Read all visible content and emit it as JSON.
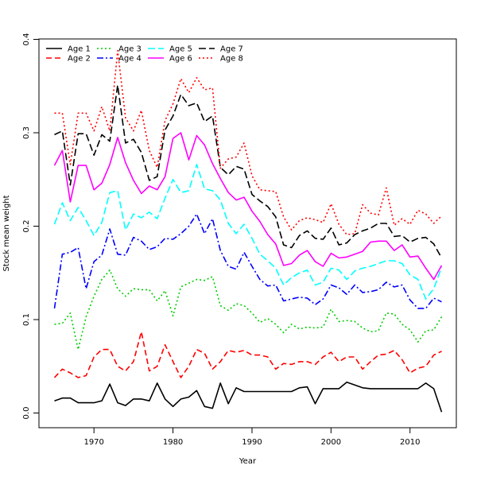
{
  "chart_data": {
    "type": "line",
    "xlabel": "Year",
    "ylabel": "Stock mean weight",
    "xlim": [
      1965,
      2014
    ],
    "ylim": [
      0,
      0.4
    ],
    "xticks": [
      1970,
      1980,
      1990,
      2000,
      2010
    ],
    "yticks": [
      0.0,
      0.1,
      0.2,
      0.3,
      0.4
    ],
    "ytick_labels": [
      "0.0",
      "0.1",
      "0.2",
      "0.3",
      "0.4"
    ],
    "legend_position": "top-left",
    "x": [
      1965,
      1966,
      1967,
      1968,
      1969,
      1970,
      1971,
      1972,
      1973,
      1974,
      1975,
      1976,
      1977,
      1978,
      1979,
      1980,
      1981,
      1982,
      1983,
      1984,
      1985,
      1986,
      1987,
      1988,
      1989,
      1990,
      1991,
      1992,
      1993,
      1994,
      1995,
      1996,
      1997,
      1998,
      1999,
      2000,
      2001,
      2002,
      2003,
      2004,
      2005,
      2006,
      2007,
      2008,
      2009,
      2010,
      2011,
      2012,
      2013,
      2014
    ],
    "series": [
      {
        "name": "Age 1",
        "color": "#000000",
        "dash": "solid",
        "values": [
          0.013,
          0.016,
          0.016,
          0.011,
          0.011,
          0.011,
          0.013,
          0.031,
          0.011,
          0.008,
          0.015,
          0.015,
          0.013,
          0.032,
          0.015,
          0.007,
          0.015,
          0.017,
          0.024,
          0.007,
          0.005,
          0.032,
          0.01,
          0.027,
          0.023,
          0.023,
          0.023,
          0.023,
          0.023,
          0.023,
          0.023,
          0.027,
          0.028,
          0.01,
          0.026,
          0.026,
          0.026,
          0.033,
          0.03,
          0.027,
          0.026,
          0.026,
          0.026,
          0.026,
          0.026,
          0.026,
          0.026,
          0.032,
          0.026,
          0.001
        ]
      },
      {
        "name": "Age 2",
        "color": "#ff0000",
        "dash": "7,4",
        "values": [
          0.038,
          0.047,
          0.043,
          0.038,
          0.04,
          0.06,
          0.068,
          0.068,
          0.05,
          0.045,
          0.055,
          0.087,
          0.045,
          0.05,
          0.073,
          0.055,
          0.038,
          0.05,
          0.068,
          0.064,
          0.047,
          0.055,
          0.067,
          0.065,
          0.067,
          0.062,
          0.062,
          0.06,
          0.047,
          0.053,
          0.052,
          0.055,
          0.055,
          0.052,
          0.06,
          0.065,
          0.055,
          0.06,
          0.06,
          0.047,
          0.055,
          0.062,
          0.063,
          0.067,
          0.057,
          0.043,
          0.048,
          0.05,
          0.062,
          0.066
        ]
      },
      {
        "name": "Age 3",
        "color": "#00cd00",
        "dash": "2,3",
        "values": [
          0.095,
          0.096,
          0.107,
          0.068,
          0.103,
          0.125,
          0.143,
          0.153,
          0.133,
          0.125,
          0.133,
          0.132,
          0.132,
          0.12,
          0.131,
          0.104,
          0.135,
          0.139,
          0.143,
          0.142,
          0.146,
          0.115,
          0.11,
          0.117,
          0.115,
          0.107,
          0.097,
          0.101,
          0.095,
          0.086,
          0.095,
          0.09,
          0.092,
          0.091,
          0.092,
          0.111,
          0.098,
          0.099,
          0.098,
          0.091,
          0.087,
          0.088,
          0.107,
          0.106,
          0.095,
          0.089,
          0.076,
          0.088,
          0.089,
          0.103
        ]
      },
      {
        "name": "Age 4",
        "color": "#0000ff",
        "dash": "8,3,2,3",
        "values": [
          0.112,
          0.17,
          0.172,
          0.177,
          0.133,
          0.162,
          0.169,
          0.197,
          0.17,
          0.169,
          0.188,
          0.184,
          0.175,
          0.178,
          0.187,
          0.186,
          0.192,
          0.2,
          0.213,
          0.192,
          0.208,
          0.174,
          0.157,
          0.154,
          0.172,
          0.157,
          0.143,
          0.136,
          0.137,
          0.12,
          0.122,
          0.124,
          0.123,
          0.116,
          0.122,
          0.137,
          0.134,
          0.127,
          0.137,
          0.129,
          0.13,
          0.132,
          0.14,
          0.135,
          0.137,
          0.121,
          0.112,
          0.112,
          0.123,
          0.119
        ]
      },
      {
        "name": "Age 5",
        "color": "#00ffff",
        "dash": "9,4",
        "values": [
          0.202,
          0.225,
          0.206,
          0.22,
          0.206,
          0.19,
          0.204,
          0.236,
          0.238,
          0.196,
          0.213,
          0.209,
          0.215,
          0.208,
          0.23,
          0.25,
          0.236,
          0.238,
          0.266,
          0.24,
          0.238,
          0.228,
          0.203,
          0.192,
          0.202,
          0.187,
          0.17,
          0.163,
          0.155,
          0.137,
          0.145,
          0.15,
          0.153,
          0.137,
          0.14,
          0.155,
          0.153,
          0.143,
          0.152,
          0.155,
          0.157,
          0.16,
          0.163,
          0.163,
          0.16,
          0.148,
          0.143,
          0.122,
          0.133,
          0.156
        ]
      },
      {
        "name": "Age 6",
        "color": "#ff00ff",
        "dash": "solid",
        "values": [
          0.265,
          0.281,
          0.226,
          0.265,
          0.265,
          0.239,
          0.246,
          0.266,
          0.295,
          0.268,
          0.249,
          0.235,
          0.243,
          0.239,
          0.253,
          0.294,
          0.3,
          0.271,
          0.297,
          0.287,
          0.267,
          0.251,
          0.236,
          0.228,
          0.231,
          0.216,
          0.205,
          0.191,
          0.181,
          0.158,
          0.16,
          0.169,
          0.174,
          0.162,
          0.157,
          0.171,
          0.166,
          0.167,
          0.17,
          0.173,
          0.183,
          0.184,
          0.184,
          0.174,
          0.18,
          0.167,
          0.168,
          0.155,
          0.143,
          0.158
        ]
      },
      {
        "name": "Age 7",
        "color": "#000000",
        "dash": "9,4",
        "values": [
          0.298,
          0.302,
          0.244,
          0.299,
          0.299,
          0.276,
          0.298,
          0.291,
          0.351,
          0.289,
          0.293,
          0.279,
          0.249,
          0.253,
          0.303,
          0.318,
          0.341,
          0.329,
          0.332,
          0.312,
          0.318,
          0.263,
          0.255,
          0.264,
          0.261,
          0.234,
          0.227,
          0.221,
          0.21,
          0.18,
          0.177,
          0.19,
          0.195,
          0.187,
          0.186,
          0.198,
          0.18,
          0.182,
          0.191,
          0.195,
          0.198,
          0.203,
          0.203,
          0.189,
          0.19,
          0.183,
          0.187,
          0.188,
          0.181,
          0.166
        ]
      },
      {
        "name": "Age 8",
        "color": "#ff0000",
        "dash": "2,3",
        "values": [
          0.321,
          0.321,
          0.266,
          0.321,
          0.321,
          0.302,
          0.328,
          0.302,
          0.388,
          0.316,
          0.302,
          0.324,
          0.281,
          0.263,
          0.313,
          0.331,
          0.358,
          0.343,
          0.359,
          0.346,
          0.348,
          0.262,
          0.272,
          0.274,
          0.289,
          0.254,
          0.239,
          0.238,
          0.237,
          0.21,
          0.196,
          0.206,
          0.209,
          0.207,
          0.204,
          0.224,
          0.202,
          0.191,
          0.192,
          0.223,
          0.214,
          0.212,
          0.241,
          0.201,
          0.208,
          0.202,
          0.217,
          0.213,
          0.203,
          0.211
        ]
      }
    ]
  }
}
